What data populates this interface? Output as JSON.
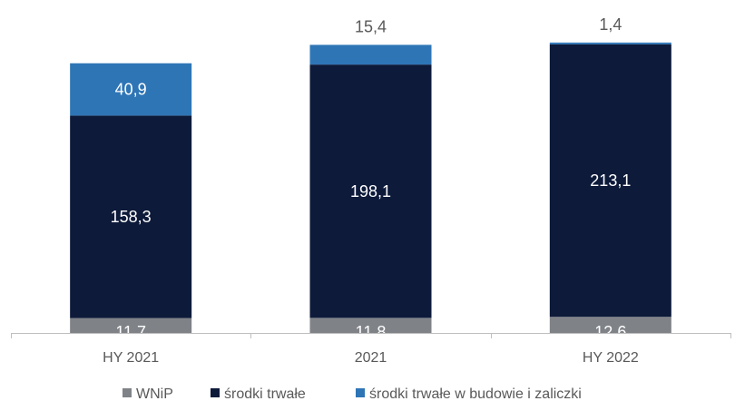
{
  "chart_data": {
    "type": "bar",
    "stacked": true,
    "categories": [
      "HY 2021",
      "2021",
      "HY 2022"
    ],
    "series": [
      {
        "name": "WNiP",
        "values": [
          11.7,
          11.8,
          12.6
        ],
        "labels": [
          "11,7",
          "11,8",
          "12,6"
        ],
        "color": "#7f8287"
      },
      {
        "name": "środki trwałe",
        "values": [
          158.3,
          198.1,
          213.1
        ],
        "labels": [
          "158,3",
          "198,1",
          "213,1"
        ],
        "color": "#0d1a3a"
      },
      {
        "name": "środki trwałe w budowie i zaliczki",
        "values": [
          40.9,
          15.4,
          1.4
        ],
        "labels": [
          "40,9",
          "15,4",
          "1,4"
        ],
        "color": "#2e75b6"
      }
    ],
    "legend_position": "bottom",
    "grid": false,
    "ylim": [
      0,
      232
    ]
  }
}
